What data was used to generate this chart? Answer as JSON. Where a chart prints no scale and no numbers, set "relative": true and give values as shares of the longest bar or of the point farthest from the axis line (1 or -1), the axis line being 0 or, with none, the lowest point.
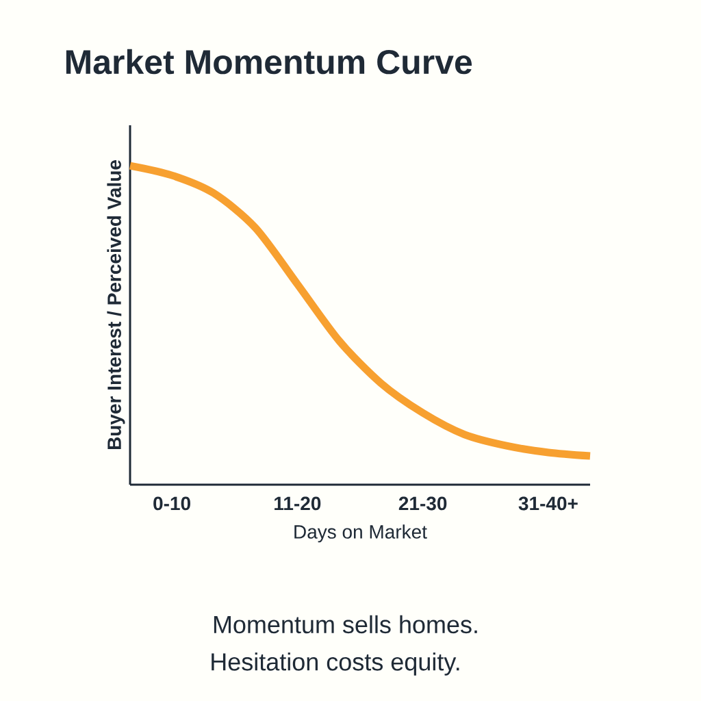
{
  "chart_data": {
    "type": "line",
    "title": "Market Momentum Curve",
    "xlabel": "Days on Market",
    "ylabel": "Buyer Interest / Perceived Value",
    "categories": [
      null,
      "0-10",
      null,
      null,
      "11-20",
      null,
      null,
      "21-30",
      null,
      null,
      "31-40+",
      null
    ],
    "values": [
      1.0,
      0.97,
      0.914,
      0.805,
      0.629,
      0.451,
      0.318,
      0.225,
      0.157,
      0.122,
      0.101,
      0.09
    ],
    "color": "#f7a030",
    "relative": true,
    "marker": "none",
    "line_style": "solid",
    "annotations": [
      "Momentum sells homes.",
      "Hesitation costs equity."
    ]
  }
}
